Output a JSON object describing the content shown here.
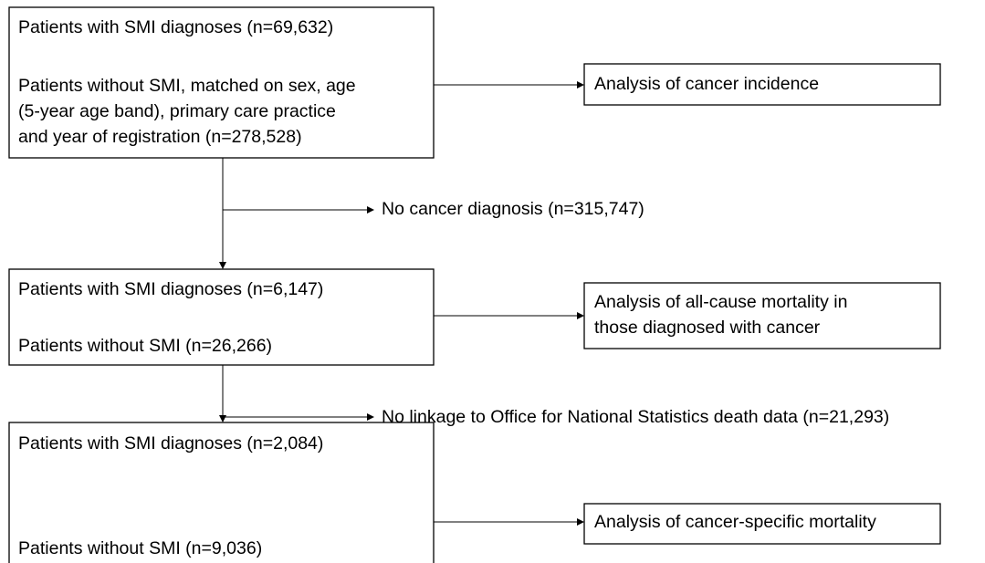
{
  "nodes": [
    {
      "lines": [
        "Patients with SMI diagnoses (n=69,632)",
        "Patients without SMI, matched on sex, age",
        "(5-year age band), primary care practice",
        "and year of registration (n=278,528)"
      ]
    },
    {
      "lines": [
        "Analysis of cancer incidence"
      ]
    },
    {
      "lines": [
        "No cancer diagnosis (n=315,747)"
      ]
    },
    {
      "lines": [
        "Patients with SMI diagnoses (n=6,147)",
        "Patients without SMI (n=26,266)"
      ]
    },
    {
      "lines": [
        "Analysis of all-cause mortality in",
        "those diagnosed with cancer"
      ]
    },
    {
      "lines": [
        "No linkage to Office for National Statistics death data (n=21,293)"
      ]
    },
    {
      "lines": [
        "Patients with SMI diagnoses (n=2,084)",
        "Patients without SMI (n=9,036)"
      ]
    },
    {
      "lines": [
        "Analysis of cancer-specific mortality"
      ]
    }
  ]
}
